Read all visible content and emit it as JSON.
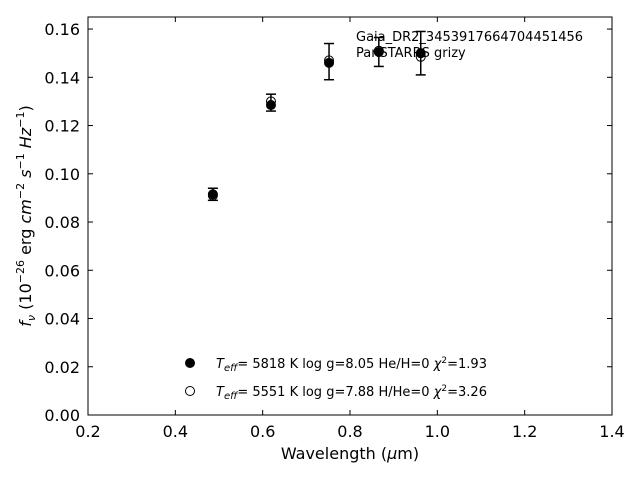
{
  "chart_data": {
    "type": "scatter",
    "xlabel": {
      "pre": "Wavelength (",
      "sym": "μ",
      "post": "m)"
    },
    "ylabel": {
      "pre": "f",
      "sub": "ν",
      "unit_a": " (10",
      "exp1": "−26",
      "unit_b": " erg ",
      "cm": "cm",
      "exp2": "−2",
      "s": " s",
      "exp3": "−1",
      "hz": " Hz",
      "exp4": "−1",
      "close": ")"
    },
    "xlim": [
      0.2,
      1.4
    ],
    "ylim": [
      0.0,
      0.165
    ],
    "x_ticks": [
      0.2,
      0.4,
      0.6,
      0.8,
      1.0,
      1.2,
      1.4
    ],
    "x_tick_labels": [
      "0.2",
      "0.4",
      "0.6",
      "0.8",
      "1.0",
      "1.2",
      "1.4"
    ],
    "y_ticks": [
      0.0,
      0.02,
      0.04,
      0.06,
      0.08,
      0.1,
      0.12,
      0.14,
      0.16
    ],
    "y_tick_labels": [
      "0.00",
      "0.02",
      "0.04",
      "0.06",
      "0.08",
      "0.10",
      "0.12",
      "0.14",
      "0.16"
    ],
    "grid": false,
    "annotation": [
      "Gaia_DR2_3453917664704451456",
      "PanSTARRS grizy"
    ],
    "observed": [
      {
        "x": 0.486,
        "y": 0.0915,
        "yerr": 0.0025
      },
      {
        "x": 0.619,
        "y": 0.1295,
        "yerr": 0.0035
      },
      {
        "x": 0.752,
        "y": 0.1465,
        "yerr": 0.0075
      },
      {
        "x": 0.866,
        "y": 0.1505,
        "yerr": 0.006
      },
      {
        "x": 0.962,
        "y": 0.15,
        "yerr": 0.009
      }
    ],
    "series": [
      {
        "marker": "filled",
        "legend": {
          "teff": "5818 K",
          "logg": "8.05",
          "comp": "He/H=0",
          "chi2": "1.93"
        },
        "values": [
          {
            "x": 0.486,
            "y": 0.0915
          },
          {
            "x": 0.619,
            "y": 0.1285
          },
          {
            "x": 0.752,
            "y": 0.146
          },
          {
            "x": 0.866,
            "y": 0.1505
          },
          {
            "x": 0.962,
            "y": 0.15
          }
        ]
      },
      {
        "marker": "open",
        "legend": {
          "teff": "5551 K",
          "logg": "7.88",
          "comp": "H/He=0",
          "chi2": "3.26"
        },
        "values": [
          {
            "x": 0.486,
            "y": 0.091
          },
          {
            "x": 0.619,
            "y": 0.13
          },
          {
            "x": 0.752,
            "y": 0.147
          },
          {
            "x": 0.866,
            "y": 0.151
          },
          {
            "x": 0.962,
            "y": 0.1485
          }
        ]
      }
    ],
    "legend_location": "lower-center"
  }
}
